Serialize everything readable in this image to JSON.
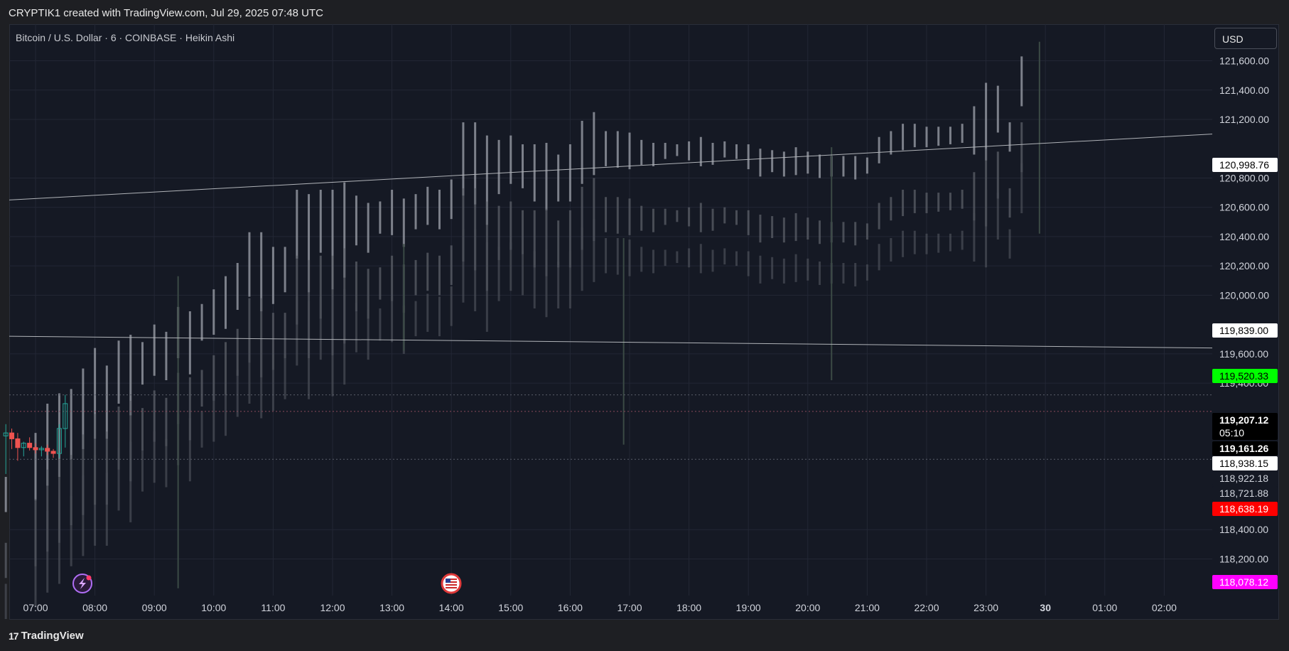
{
  "header": {
    "attribution": "CRYPTIK1 created with TradingView.com, Jul 29, 2025 07:48 UTC"
  },
  "symbol": {
    "title": "Bitcoin / U.S. Dollar · 6 · COINBASE · Heikin Ashi"
  },
  "currency": {
    "label": "USD"
  },
  "footer": {
    "logo_text": "TradingView",
    "logo_mark": "17"
  },
  "colors": {
    "background": "#151924",
    "grid": "#232735",
    "bull": "#26a69a",
    "bear": "#ef5350",
    "ghost_light": "#8f939c",
    "ghost_dark": "#4b4f58",
    "trendline": "#b0b3b8",
    "current_price_tag": "#000000",
    "green_tag": "#00ff00",
    "red_tag": "#ff0000",
    "magenta_tag": "#ff00ff"
  },
  "chart_data": {
    "type": "candlestick",
    "style": "Heikin Ashi",
    "interval": "6",
    "exchange": "COINBASE",
    "ylim": [
      117950,
      121850
    ],
    "x_ticks": [
      "07:00",
      "08:00",
      "09:00",
      "10:00",
      "11:00",
      "12:00",
      "13:00",
      "14:00",
      "15:00",
      "16:00",
      "17:00",
      "18:00",
      "19:00",
      "20:00",
      "21:00",
      "22:00",
      "23:00",
      "30",
      "01:00",
      "02:00"
    ],
    "x_tick_bold": "30",
    "y_ticks": [
      121600,
      121400,
      121200,
      120800,
      120600,
      120400,
      120200,
      120000,
      119600,
      119400,
      118400,
      118200
    ],
    "y_tick_labels": [
      "121,600.00",
      "121,400.00",
      "121,200.00",
      "120,800.00",
      "120,600.00",
      "120,400.00",
      "120,200.00",
      "120,000.00",
      "119,600.00",
      "119,400.00",
      "118,400.00",
      "118,200.00"
    ],
    "price_tags": [
      {
        "value": 120998.76,
        "label": "120,998.76",
        "style": "white"
      },
      {
        "value": 119839.0,
        "label": "119,839.00",
        "style": "white"
      },
      {
        "value": 119520.33,
        "label": "119,520.33",
        "style": "green"
      },
      {
        "value": 119207.12,
        "label": "119,207.12",
        "style": "current",
        "countdown": "05:10"
      },
      {
        "value": 119161.26,
        "label": "119,161.26",
        "style": "current"
      },
      {
        "value": 118938.15,
        "label": "118,938.15",
        "style": "white"
      },
      {
        "value": 118922.18,
        "label": "118,922.18",
        "style": "plain"
      },
      {
        "value": 118721.88,
        "label": "118,721.88",
        "style": "plain"
      },
      {
        "value": 118638.19,
        "label": "118,638.19",
        "style": "red"
      },
      {
        "value": 118078.12,
        "label": "118,078.12",
        "style": "magenta"
      }
    ],
    "trendlines": [
      {
        "from_time": "06:20",
        "from_value": 120650,
        "to_time": "02:45",
        "to_value": 121100
      },
      {
        "from_time": "06:20",
        "from_value": 119720,
        "to_time": "02:45",
        "to_value": 119640
      }
    ],
    "dotted_levels": [
      119320,
      119207.12,
      118880
    ],
    "candles": [
      {
        "t": "06:30",
        "o": 119040,
        "h": 119120,
        "l": 118780,
        "c": 119060
      },
      {
        "t": "06:36",
        "o": 119060,
        "h": 119090,
        "l": 118950,
        "c": 119020
      },
      {
        "t": "06:42",
        "o": 119020,
        "h": 119060,
        "l": 118870,
        "c": 118960
      },
      {
        "t": "06:48",
        "o": 118960,
        "h": 119000,
        "l": 118900,
        "c": 118990
      },
      {
        "t": "06:54",
        "o": 118990,
        "h": 119030,
        "l": 118940,
        "c": 118960
      },
      {
        "t": "07:00",
        "o": 118960,
        "h": 118990,
        "l": 118920,
        "c": 118945
      },
      {
        "t": "07:06",
        "o": 118945,
        "h": 118970,
        "l": 118900,
        "c": 118955
      },
      {
        "t": "07:12",
        "o": 118955,
        "h": 118980,
        "l": 118910,
        "c": 118935
      },
      {
        "t": "07:18",
        "o": 118935,
        "h": 118950,
        "l": 118890,
        "c": 118920
      },
      {
        "t": "07:24",
        "o": 118920,
        "h": 119120,
        "l": 118890,
        "c": 119090
      },
      {
        "t": "07:30",
        "o": 119090,
        "h": 119320,
        "l": 118960,
        "c": 119260
      }
    ],
    "ghost_offsets": [
      0,
      450,
      730
    ],
    "ghost_bars": [
      {
        "t": "06:30",
        "lo": 118520,
        "hi": 118760
      },
      {
        "t": "07:00",
        "lo": 118600,
        "hi": 119060
      },
      {
        "t": "07:12",
        "lo": 118700,
        "hi": 119260
      },
      {
        "t": "07:24",
        "lo": 118760,
        "hi": 119330
      },
      {
        "t": "07:36",
        "lo": 118880,
        "hi": 119360
      },
      {
        "t": "07:48",
        "lo": 118950,
        "hi": 119500
      },
      {
        "t": "08:00",
        "lo": 119020,
        "hi": 119640
      },
      {
        "t": "08:12",
        "lo": 119020,
        "hi": 119520
      },
      {
        "t": "08:24",
        "lo": 119260,
        "hi": 119690
      },
      {
        "t": "08:36",
        "lo": 119180,
        "hi": 119730
      },
      {
        "t": "08:48",
        "lo": 119390,
        "hi": 119680
      },
      {
        "t": "09:00",
        "lo": 119450,
        "hi": 119800
      },
      {
        "t": "09:12",
        "lo": 119420,
        "hi": 119750
      },
      {
        "t": "09:24",
        "lo": 119570,
        "hi": 119920
      },
      {
        "t": "09:36",
        "lo": 119460,
        "hi": 119890
      },
      {
        "t": "09:48",
        "lo": 119690,
        "hi": 119940
      },
      {
        "t": "10:00",
        "lo": 119730,
        "hi": 120040
      },
      {
        "t": "10:12",
        "lo": 119770,
        "hi": 120130
      },
      {
        "t": "10:24",
        "lo": 119900,
        "hi": 120220
      },
      {
        "t": "10:36",
        "lo": 119990,
        "hi": 120430
      },
      {
        "t": "10:48",
        "lo": 119890,
        "hi": 120430
      },
      {
        "t": "11:00",
        "lo": 119940,
        "hi": 120330
      },
      {
        "t": "11:12",
        "lo": 120020,
        "hi": 120330
      },
      {
        "t": "11:24",
        "lo": 120250,
        "hi": 120720
      },
      {
        "t": "11:36",
        "lo": 120020,
        "hi": 120690
      },
      {
        "t": "11:48",
        "lo": 120290,
        "hi": 120720
      },
      {
        "t": "12:00",
        "lo": 120040,
        "hi": 120720
      },
      {
        "t": "12:12",
        "lo": 120120,
        "hi": 120770
      },
      {
        "t": "12:24",
        "lo": 120340,
        "hi": 120680
      },
      {
        "t": "12:36",
        "lo": 120290,
        "hi": 120630
      },
      {
        "t": "12:48",
        "lo": 120420,
        "hi": 120640
      },
      {
        "t": "13:00",
        "lo": 120410,
        "hi": 120720
      },
      {
        "t": "13:12",
        "lo": 120330,
        "hi": 120660
      },
      {
        "t": "13:24",
        "lo": 120450,
        "hi": 120690
      },
      {
        "t": "13:36",
        "lo": 120480,
        "hi": 120740
      },
      {
        "t": "13:48",
        "lo": 120450,
        "hi": 120720
      },
      {
        "t": "14:00",
        "lo": 120520,
        "hi": 120790
      },
      {
        "t": "14:12",
        "lo": 120680,
        "hi": 121180
      },
      {
        "t": "14:24",
        "lo": 120620,
        "hi": 121180
      },
      {
        "t": "14:36",
        "lo": 120480,
        "hi": 121090
      },
      {
        "t": "14:48",
        "lo": 120690,
        "hi": 121060
      },
      {
        "t": "15:00",
        "lo": 120760,
        "hi": 121090
      },
      {
        "t": "15:12",
        "lo": 120730,
        "hi": 121030
      },
      {
        "t": "15:24",
        "lo": 120640,
        "hi": 121030
      },
      {
        "t": "15:36",
        "lo": 120580,
        "hi": 121040
      },
      {
        "t": "15:48",
        "lo": 120640,
        "hi": 120960
      },
      {
        "t": "16:00",
        "lo": 120640,
        "hi": 121030
      },
      {
        "t": "16:12",
        "lo": 120760,
        "hi": 121190
      },
      {
        "t": "16:24",
        "lo": 120820,
        "hi": 121250
      },
      {
        "t": "16:36",
        "lo": 120880,
        "hi": 121120
      },
      {
        "t": "16:48",
        "lo": 120870,
        "hi": 121120
      },
      {
        "t": "17:00",
        "lo": 120860,
        "hi": 121110
      },
      {
        "t": "17:12",
        "lo": 120890,
        "hi": 121060
      },
      {
        "t": "17:24",
        "lo": 120880,
        "hi": 121040
      },
      {
        "t": "17:36",
        "lo": 120930,
        "hi": 121040
      },
      {
        "t": "17:48",
        "lo": 120950,
        "hi": 121030
      },
      {
        "t": "18:00",
        "lo": 120920,
        "hi": 121050
      },
      {
        "t": "18:12",
        "lo": 120880,
        "hi": 121080
      },
      {
        "t": "18:24",
        "lo": 120890,
        "hi": 121040
      },
      {
        "t": "18:36",
        "lo": 120940,
        "hi": 121050
      },
      {
        "t": "18:48",
        "lo": 120930,
        "hi": 121030
      },
      {
        "t": "19:00",
        "lo": 120860,
        "hi": 121030
      },
      {
        "t": "19:12",
        "lo": 120810,
        "hi": 121000
      },
      {
        "t": "19:24",
        "lo": 120840,
        "hi": 120990
      },
      {
        "t": "19:36",
        "lo": 120810,
        "hi": 120980
      },
      {
        "t": "19:48",
        "lo": 120820,
        "hi": 121010
      },
      {
        "t": "20:00",
        "lo": 120830,
        "hi": 120980
      },
      {
        "t": "20:12",
        "lo": 120800,
        "hi": 120960
      },
      {
        "t": "20:24",
        "lo": 120810,
        "hi": 120950
      },
      {
        "t": "20:36",
        "lo": 120810,
        "hi": 120950
      },
      {
        "t": "20:48",
        "lo": 120790,
        "hi": 120950
      },
      {
        "t": "21:00",
        "lo": 120830,
        "hi": 120940
      },
      {
        "t": "21:12",
        "lo": 120900,
        "hi": 121080
      },
      {
        "t": "21:24",
        "lo": 120960,
        "hi": 121120
      },
      {
        "t": "21:36",
        "lo": 120990,
        "hi": 121170
      },
      {
        "t": "21:48",
        "lo": 121010,
        "hi": 121170
      },
      {
        "t": "22:00",
        "lo": 121010,
        "hi": 121150
      },
      {
        "t": "22:12",
        "lo": 121020,
        "hi": 121150
      },
      {
        "t": "22:24",
        "lo": 121030,
        "hi": 121150
      },
      {
        "t": "22:36",
        "lo": 121040,
        "hi": 121170
      },
      {
        "t": "22:48",
        "lo": 120960,
        "hi": 121290
      },
      {
        "t": "23:00",
        "lo": 120920,
        "hi": 121450
      },
      {
        "t": "23:12",
        "lo": 121110,
        "hi": 121430
      },
      {
        "t": "23:24",
        "lo": 120980,
        "hi": 121180
      },
      {
        "t": "23:36",
        "lo": 121290,
        "hi": 121630
      }
    ],
    "faint_wicks": [
      {
        "t": "09:24",
        "lo": 118000,
        "hi": 120130
      },
      {
        "t": "13:12",
        "lo": 119620,
        "hi": 120350
      },
      {
        "t": "16:54",
        "lo": 118980,
        "hi": 120390
      },
      {
        "t": "20:24",
        "lo": 119420,
        "hi": 121010
      },
      {
        "t": "23:54",
        "lo": 120420,
        "hi": 121730
      }
    ]
  }
}
